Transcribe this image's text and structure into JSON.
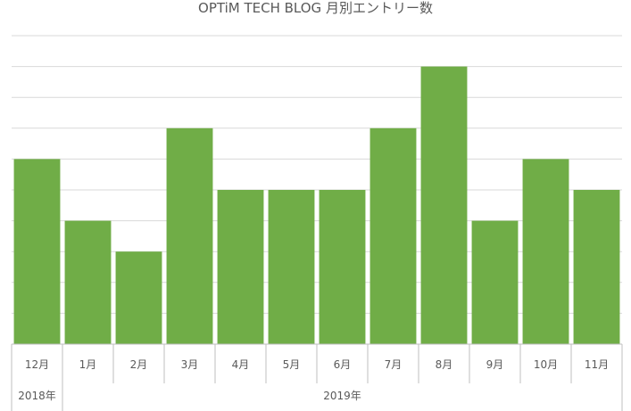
{
  "chart_data": {
    "type": "bar",
    "title": "OPTiM TECH BLOG 月別エントリー数",
    "categories": [
      "12月",
      "1月",
      "2月",
      "3月",
      "4月",
      "5月",
      "6月",
      "7月",
      "8月",
      "9月",
      "10月",
      "11月"
    ],
    "groups": [
      {
        "label": "2018年",
        "count": 1
      },
      {
        "label": "2019年",
        "count": 11
      }
    ],
    "values": [
      6,
      4,
      3,
      7,
      5,
      5,
      5,
      7,
      9,
      4,
      6,
      5
    ],
    "ylim": [
      0,
      10
    ],
    "grid": true,
    "legend": false,
    "colors": {
      "bar": "#70ad47",
      "grid": "#d9d9d9",
      "axis": "#bfbfbf",
      "text": "#595959"
    }
  }
}
